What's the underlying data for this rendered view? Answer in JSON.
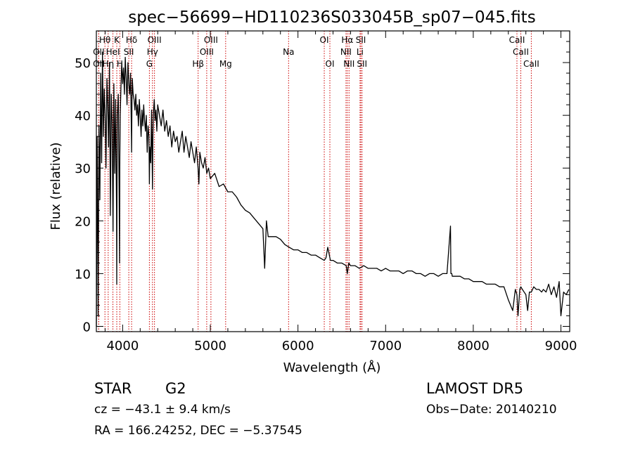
{
  "chart_data": {
    "type": "line",
    "title": "spec−56699−HD110236S033045B_sp07−045.fits",
    "xlabel": "Wavelength (Å)",
    "ylabel": "Flux (relative)",
    "xlim": [
      3700,
      9100
    ],
    "ylim": [
      -1,
      56
    ],
    "xticks": [
      4000,
      5000,
      6000,
      7000,
      8000,
      9000
    ],
    "yticks": [
      0,
      10,
      20,
      30,
      40,
      50
    ],
    "grid": false,
    "line_color": "#000000",
    "marker_color": "#cc0000",
    "series": [
      {
        "x": [
          3700,
          3710,
          3720,
          3730,
          3740,
          3750,
          3760,
          3770,
          3780,
          3790,
          3800,
          3810,
          3820,
          3830,
          3840,
          3850,
          3860,
          3870,
          3880,
          3890,
          3900,
          3910,
          3920,
          3930,
          3933,
          3936,
          3940,
          3950,
          3960,
          3965,
          3968,
          3972,
          3980,
          3990,
          4000,
          4010,
          4020,
          4030,
          4040,
          4050,
          4060,
          4070,
          4080,
          4090,
          4100,
          4102,
          4106,
          4110,
          4120,
          4130,
          4140,
          4150,
          4160,
          4170,
          4180,
          4190,
          4200,
          4210,
          4220,
          4230,
          4240,
          4250,
          4260,
          4270,
          4280,
          4290,
          4300,
          4305,
          4310,
          4320,
          4330,
          4340,
          4345,
          4350,
          4360,
          4370,
          4380,
          4390,
          4400,
          4420,
          4440,
          4460,
          4480,
          4500,
          4520,
          4540,
          4560,
          4580,
          4600,
          4620,
          4640,
          4660,
          4680,
          4700,
          4720,
          4740,
          4760,
          4780,
          4800,
          4820,
          4840,
          4860,
          4870,
          4880,
          4900,
          4920,
          4940,
          4960,
          4980,
          5000,
          5050,
          5100,
          5150,
          5200,
          5250,
          5300,
          5350,
          5400,
          5450,
          5500,
          5550,
          5600,
          5620,
          5640,
          5660,
          5700,
          5750,
          5800,
          5850,
          5900,
          5950,
          6000,
          6050,
          6100,
          6150,
          6200,
          6250,
          6300,
          6320,
          6340,
          6370,
          6400,
          6450,
          6500,
          6550,
          6563,
          6580,
          6600,
          6650,
          6700,
          6750,
          6800,
          6850,
          6900,
          6950,
          7000,
          7050,
          7100,
          7150,
          7200,
          7250,
          7300,
          7350,
          7400,
          7450,
          7500,
          7550,
          7600,
          7650,
          7700,
          7740,
          7745,
          7750,
          7755,
          7760,
          7800,
          7850,
          7900,
          7950,
          8000,
          8050,
          8100,
          8150,
          8200,
          8250,
          8300,
          8350,
          8400,
          8450,
          8480,
          8498,
          8510,
          8530,
          8542,
          8560,
          8580,
          8600,
          8620,
          8640,
          8662,
          8690,
          8720,
          8750,
          8780,
          8800,
          8830,
          8860,
          8890,
          8920,
          8950,
          8980,
          9000,
          9030,
          9060,
          9090
        ],
        "y": [
          0,
          36,
          2,
          38,
          24,
          48,
          31,
          52,
          36,
          45,
          40,
          30,
          47,
          42,
          34,
          50,
          21,
          44,
          39,
          18,
          46,
          29,
          43,
          22,
          8,
          28,
          40,
          44,
          24,
          12,
          32,
          40,
          45,
          50,
          46,
          49,
          44,
          51,
          47,
          42,
          50,
          46,
          44,
          48,
          36,
          33,
          42,
          47,
          44,
          43,
          41,
          44,
          40,
          42,
          38,
          43,
          40,
          36,
          41,
          38,
          42,
          39,
          37,
          40,
          33,
          38,
          36,
          27,
          34,
          31,
          41,
          26,
          36,
          40,
          43,
          39,
          41,
          37,
          42,
          40,
          38,
          41,
          37,
          39,
          36,
          38,
          34,
          37,
          35,
          36,
          33,
          35,
          37,
          33,
          36,
          34,
          32,
          35,
          33,
          31,
          34,
          30,
          27,
          33,
          31,
          30,
          32,
          29,
          30,
          28,
          29,
          26.5,
          27,
          25.5,
          25.5,
          24.5,
          23,
          22,
          21.5,
          20.5,
          19.5,
          18.5,
          11,
          20,
          17,
          17,
          17,
          16.5,
          15.5,
          15,
          14.5,
          14.5,
          14,
          14,
          13.5,
          13.5,
          13,
          12.5,
          13,
          15,
          12.5,
          12.5,
          12,
          12,
          11.5,
          10,
          12,
          11.5,
          11.5,
          11,
          11.5,
          11,
          11,
          11,
          10.5,
          11,
          10.5,
          10.5,
          10.5,
          10,
          10.5,
          10.5,
          10,
          10,
          9.5,
          10,
          10,
          9.5,
          10,
          10,
          19,
          10,
          10,
          10,
          9.5,
          9.5,
          9.5,
          9,
          9,
          8.5,
          8.5,
          8.5,
          8,
          8,
          8,
          7.5,
          7.5,
          5,
          3,
          7,
          6,
          2,
          7,
          7.5,
          7,
          6.5,
          6,
          3,
          6.5,
          6.5,
          7.5,
          7,
          7,
          6.5,
          7,
          6.5,
          8,
          6,
          7.5,
          5.5,
          8.5,
          2,
          6.5,
          6,
          7
        ]
      }
    ],
    "lines_upper": [
      {
        "label": "Hθ",
        "x": 3798
      },
      {
        "label": "K",
        "x": 3933
      },
      {
        "label": "Hδ",
        "x": 4102
      },
      {
        "label": "OIII",
        "x": 4363
      },
      {
        "label": "OIII",
        "x": 5007
      },
      {
        "label": "OI",
        "x": 6300
      },
      {
        "label": "Hα",
        "x": 6563
      },
      {
        "label": "SII",
        "x": 6717
      },
      {
        "label": "CaII",
        "x": 8498
      }
    ],
    "lines_middle": [
      {
        "label": "OII",
        "x": 3727
      },
      {
        "label": "HeI",
        "x": 3889
      },
      {
        "label": "SII",
        "x": 4070
      },
      {
        "label": "Hγ",
        "x": 4340
      },
      {
        "label": "OIII",
        "x": 4959
      },
      {
        "label": "Na",
        "x": 5893
      },
      {
        "label": "NII",
        "x": 6548
      },
      {
        "label": "Li",
        "x": 6708
      },
      {
        "label": "CaII",
        "x": 8542
      }
    ],
    "lines_lower": [
      {
        "label": "OII",
        "x": 3727
      },
      {
        "label": "Hη",
        "x": 3835
      },
      {
        "label": "H",
        "x": 3968
      },
      {
        "label": "G",
        "x": 4305
      },
      {
        "label": "Hβ",
        "x": 4861
      },
      {
        "label": "Mg",
        "x": 5175
      },
      {
        "label": "OI",
        "x": 6364
      },
      {
        "label": "NII",
        "x": 6583
      },
      {
        "label": "SII",
        "x": 6731
      },
      {
        "label": "CaII",
        "x": 8662
      }
    ]
  },
  "info": {
    "class_label": "STAR",
    "subclass": "G2",
    "survey": "LAMOST DR5",
    "cz_text": "cz = −43.1 ± 9.4 km/s",
    "obs_date": "Obs−Date: 20140210",
    "radec": "RA = 166.24252, DEC =  −5.37545"
  }
}
